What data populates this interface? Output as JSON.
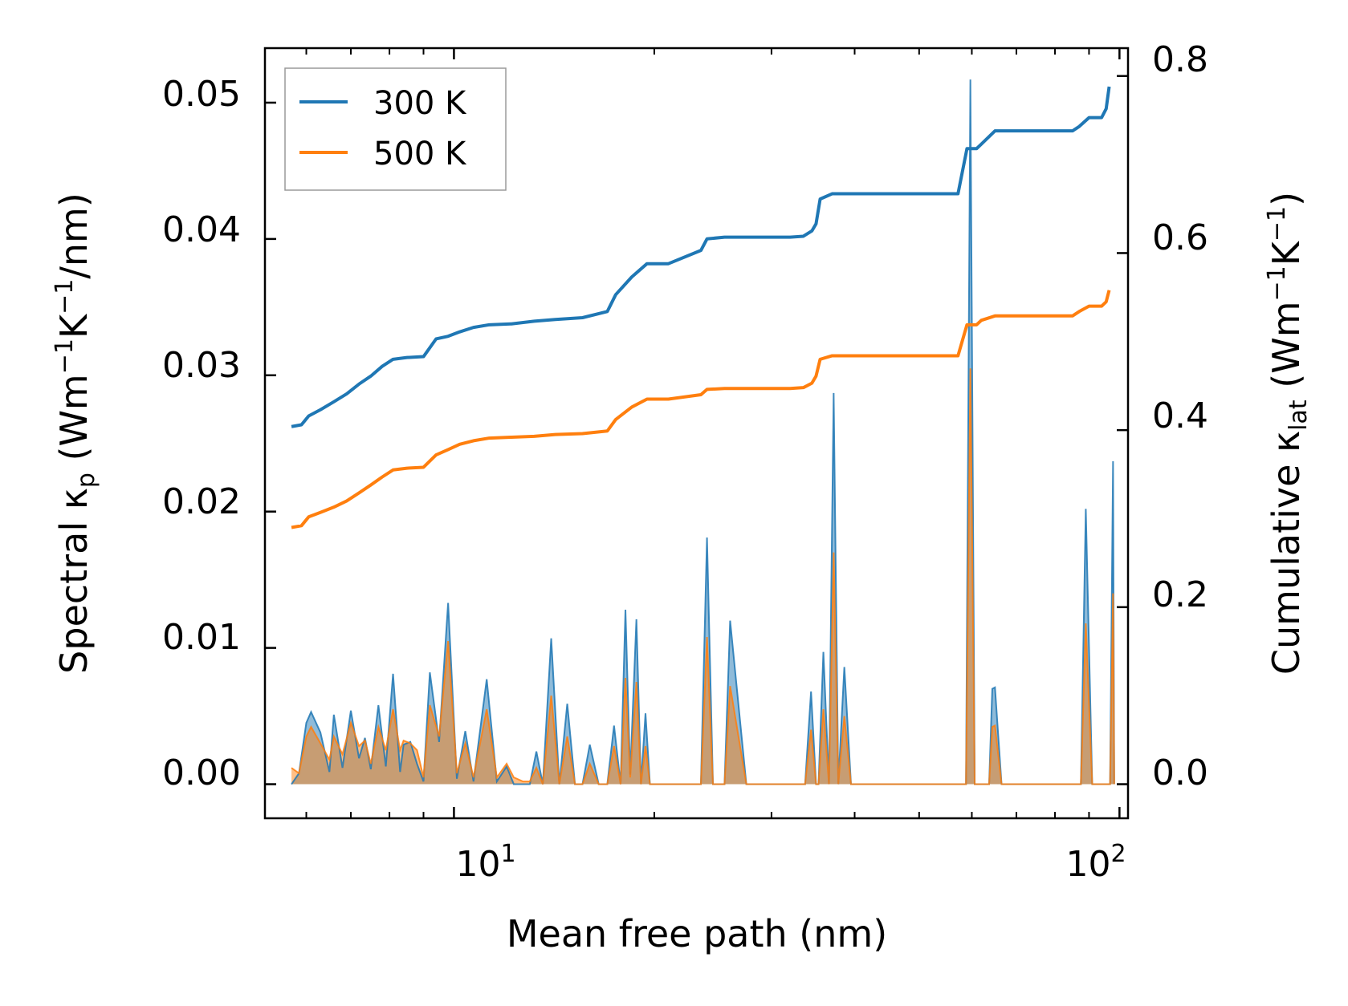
{
  "chart_data": {
    "type": "line",
    "xscale": "log",
    "xlabel": "Mean free path (nm)",
    "ylabel_left": {
      "main": "Spectral κ",
      "sub": "p",
      "unit_open": " (Wm",
      "exp1": "−1",
      "unit_mid": "K",
      "exp2": "−1",
      "unit_close": "/nm)"
    },
    "ylabel_right": {
      "main": "Cumulative κ",
      "sub": "lat",
      "unit_open": " (Wm",
      "exp1": "−1",
      "unit_mid": "K",
      "exp2": "−1",
      "unit_close": ")"
    },
    "xlim": [
      5.2,
      103
    ],
    "ylim_left": [
      -0.0025,
      0.054
    ],
    "ylim_right": [
      -0.0385,
      0.8315
    ],
    "x_major_ticks": [
      10,
      100
    ],
    "x_tick_labels": [
      {
        "base": "10",
        "exp": "1"
      },
      {
        "base": "10",
        "exp": "2"
      }
    ],
    "x_minor_ticks": [
      6,
      7,
      8,
      9,
      20,
      30,
      40,
      50,
      60,
      70,
      80,
      90
    ],
    "y_left_ticks": [
      0.0,
      0.01,
      0.02,
      0.03,
      0.04,
      0.05
    ],
    "y_left_tick_labels": [
      "0.00",
      "0.01",
      "0.02",
      "0.03",
      "0.04",
      "0.05"
    ],
    "y_right_ticks": [
      0.0,
      0.2,
      0.4,
      0.6,
      0.8
    ],
    "y_right_tick_labels": [
      "0.0",
      "0.2",
      "0.4",
      "0.6",
      "0.8"
    ],
    "legend": {
      "position": "top-left",
      "entries": [
        {
          "label": "300 K",
          "color": "#1f77b4"
        },
        {
          "label": "500 K",
          "color": "#ff7f0e"
        }
      ]
    },
    "series": [
      {
        "name": "300 K",
        "color": "#1f77b4",
        "cumulative": {
          "x": [
            5.7,
            5.9,
            6.05,
            6.3,
            6.6,
            6.9,
            7.2,
            7.5,
            7.8,
            8.1,
            8.5,
            9.0,
            9.4,
            9.8,
            10.2,
            10.7,
            11.3,
            12.2,
            13.2,
            14.2,
            15.6,
            17.0,
            17.5,
            18.5,
            19.5,
            21.0,
            23.5,
            24.0,
            25.5,
            28.0,
            32.0,
            33.5,
            34.5,
            35.0,
            35.5,
            37.0,
            45.0,
            56.0,
            57.2,
            59.0,
            61.0,
            62.0,
            65.0,
            70.0,
            75.0,
            80.0,
            85.0,
            87.0,
            90.0,
            92.0,
            94.0,
            95.5,
            96.5
          ],
          "y": [
            0.404,
            0.406,
            0.416,
            0.423,
            0.432,
            0.441,
            0.452,
            0.461,
            0.472,
            0.48,
            0.482,
            0.483,
            0.503,
            0.506,
            0.511,
            0.516,
            0.519,
            0.52,
            0.523,
            0.525,
            0.527,
            0.534,
            0.553,
            0.573,
            0.588,
            0.588,
            0.603,
            0.616,
            0.618,
            0.618,
            0.618,
            0.619,
            0.625,
            0.633,
            0.661,
            0.667,
            0.667,
            0.667,
            0.667,
            0.718,
            0.718,
            0.723,
            0.738,
            0.738,
            0.738,
            0.738,
            0.738,
            0.743,
            0.753,
            0.753,
            0.753,
            0.763,
            0.788
          ]
        },
        "spectral": {
          "x": [
            5.7,
            5.85,
            6.0,
            6.1,
            6.3,
            6.5,
            6.6,
            6.8,
            7.0,
            7.2,
            7.35,
            7.5,
            7.7,
            7.9,
            8.1,
            8.3,
            8.4,
            8.6,
            8.8,
            9.0,
            9.2,
            9.5,
            9.8,
            10.1,
            10.4,
            10.7,
            11.2,
            11.6,
            12.0,
            12.3,
            12.7,
            13.0,
            13.3,
            13.6,
            14.0,
            14.4,
            14.8,
            15.2,
            15.6,
            16.0,
            16.5,
            17.0,
            17.4,
            17.8,
            18.1,
            18.4,
            18.8,
            19.1,
            19.4,
            19.7,
            20.0,
            20.4,
            20.8,
            21.3,
            21.8,
            22.4,
            23.0,
            23.5,
            24.0,
            24.5,
            25.0,
            25.5,
            26.0,
            27.5,
            28.5,
            31.0,
            33.0,
            33.7,
            34.4,
            35.0,
            35.3,
            35.9,
            36.6,
            37.2,
            37.8,
            38.6,
            39.5,
            41.0,
            55.0,
            57.0,
            57.9,
            58.8,
            59.7,
            60.6,
            61.8,
            63.0,
            63.7,
            64.4,
            65.0,
            66.5,
            68.5,
            75.0,
            80.0,
            85.0,
            86.0,
            87.5,
            89.0,
            91.0,
            95.0,
            96.8,
            97.8,
            98.2
          ],
          "y": [
            0.0,
            0.0008,
            0.0045,
            0.0053,
            0.0038,
            0.0009,
            0.0051,
            0.0012,
            0.0054,
            0.0019,
            0.0034,
            0.0011,
            0.0058,
            0.0013,
            0.0081,
            0.0009,
            0.0029,
            0.0031,
            0.0015,
            0.0002,
            0.0082,
            0.0031,
            0.0133,
            0.0004,
            0.0039,
            0.0002,
            0.0077,
            0.0002,
            0.0013,
            0.0,
            0.0,
            0.0,
            0.0024,
            0.0,
            0.0107,
            0.0,
            0.0059,
            0.0,
            0.0,
            0.0029,
            0.0,
            0.0,
            0.0043,
            0.0,
            0.0128,
            0.0007,
            0.0121,
            0.0,
            0.0052,
            0.0,
            0.0,
            0.0,
            0.0,
            0.0,
            0.0,
            0.0,
            0.0,
            0.0,
            0.0181,
            0.0,
            0.0,
            0.0,
            0.012,
            0.0,
            0.0,
            0.0,
            0.0,
            0.0,
            0.0068,
            0.0,
            0.0,
            0.0097,
            0.0,
            0.0287,
            0.0,
            0.0086,
            0.0,
            0.0,
            0.0,
            0.0,
            0.0,
            0.0,
            0.0517,
            0.0,
            0.0,
            0.0,
            0.0,
            0.007,
            0.0071,
            0.0,
            0.0,
            0.0,
            0.0,
            0.0,
            0.0,
            0.0,
            0.0202,
            0.0,
            0.0,
            0.0,
            0.0237,
            0.0
          ]
        }
      },
      {
        "name": "500 K",
        "color": "#ff7f0e",
        "cumulative": {
          "x": [
            5.7,
            5.9,
            6.05,
            6.3,
            6.6,
            6.9,
            7.2,
            7.5,
            7.8,
            8.1,
            8.5,
            9.0,
            9.4,
            9.8,
            10.2,
            10.7,
            11.3,
            12.2,
            13.2,
            14.2,
            15.6,
            17.0,
            17.5,
            18.5,
            19.5,
            21.0,
            23.5,
            24.0,
            25.5,
            28.0,
            32.0,
            33.5,
            34.5,
            35.0,
            35.5,
            37.0,
            45.0,
            56.0,
            57.2,
            59.0,
            61.0,
            62.0,
            65.0,
            70.0,
            75.0,
            80.0,
            85.0,
            87.0,
            90.0,
            92.0,
            94.0,
            95.5,
            96.5
          ],
          "y": [
            0.29,
            0.292,
            0.302,
            0.307,
            0.313,
            0.32,
            0.329,
            0.338,
            0.347,
            0.355,
            0.357,
            0.358,
            0.372,
            0.378,
            0.384,
            0.388,
            0.391,
            0.392,
            0.393,
            0.395,
            0.396,
            0.399,
            0.412,
            0.426,
            0.435,
            0.435,
            0.44,
            0.446,
            0.447,
            0.447,
            0.447,
            0.448,
            0.453,
            0.461,
            0.48,
            0.484,
            0.484,
            0.484,
            0.484,
            0.519,
            0.519,
            0.524,
            0.529,
            0.529,
            0.529,
            0.529,
            0.529,
            0.534,
            0.54,
            0.54,
            0.54,
            0.545,
            0.558
          ]
        },
        "spectral": {
          "x": [
            5.7,
            5.85,
            6.0,
            6.1,
            6.3,
            6.5,
            6.6,
            6.8,
            7.0,
            7.2,
            7.35,
            7.5,
            7.7,
            7.9,
            8.1,
            8.3,
            8.4,
            8.6,
            8.8,
            9.0,
            9.2,
            9.5,
            9.8,
            10.1,
            10.4,
            10.7,
            11.2,
            11.6,
            12.0,
            12.3,
            12.7,
            13.0,
            13.3,
            13.6,
            14.0,
            14.4,
            14.8,
            15.2,
            15.6,
            16.0,
            16.5,
            17.0,
            17.4,
            17.8,
            18.1,
            18.4,
            18.8,
            19.1,
            19.4,
            19.7,
            20.0,
            20.4,
            20.8,
            21.3,
            21.8,
            22.4,
            23.0,
            23.5,
            24.0,
            24.5,
            25.0,
            25.5,
            26.0,
            27.5,
            28.5,
            31.0,
            33.0,
            33.7,
            34.4,
            35.0,
            35.3,
            35.9,
            36.6,
            37.2,
            37.8,
            38.6,
            39.5,
            41.0,
            55.0,
            57.0,
            57.9,
            58.8,
            59.7,
            60.6,
            61.8,
            63.0,
            63.7,
            64.4,
            65.0,
            66.5,
            68.5,
            75.0,
            80.0,
            85.0,
            86.0,
            87.5,
            89.0,
            91.0,
            95.0,
            96.8,
            97.8,
            98.2
          ],
          "y": [
            0.0012,
            0.0008,
            0.0035,
            0.0042,
            0.003,
            0.0018,
            0.0035,
            0.0022,
            0.0045,
            0.0028,
            0.0032,
            0.0015,
            0.0042,
            0.0025,
            0.0055,
            0.0025,
            0.0032,
            0.003,
            0.0025,
            0.0005,
            0.0058,
            0.0035,
            0.0105,
            0.0008,
            0.003,
            0.0005,
            0.0055,
            0.0005,
            0.0015,
            0.0005,
            0.0002,
            0.0002,
            0.0012,
            0.0,
            0.0065,
            0.0,
            0.0035,
            0.0,
            0.0,
            0.0015,
            0.0,
            0.0,
            0.0028,
            0.0,
            0.0078,
            0.0005,
            0.0075,
            0.0,
            0.0028,
            0.0,
            0.0,
            0.0,
            0.0,
            0.0,
            0.0,
            0.0,
            0.0,
            0.0,
            0.0108,
            0.0,
            0.0,
            0.0,
            0.0072,
            0.0,
            0.0,
            0.0,
            0.0,
            0.0,
            0.004,
            0.0,
            0.0,
            0.0055,
            0.0,
            0.017,
            0.0,
            0.005,
            0.0,
            0.0,
            0.0,
            0.0,
            0.0,
            0.0,
            0.0305,
            0.0,
            0.0,
            0.0,
            0.0,
            0.0042,
            0.0043,
            0.0,
            0.0,
            0.0,
            0.0,
            0.0,
            0.0,
            0.0,
            0.0118,
            0.0,
            0.0,
            0.0,
            0.014,
            0.0
          ]
        }
      }
    ]
  }
}
